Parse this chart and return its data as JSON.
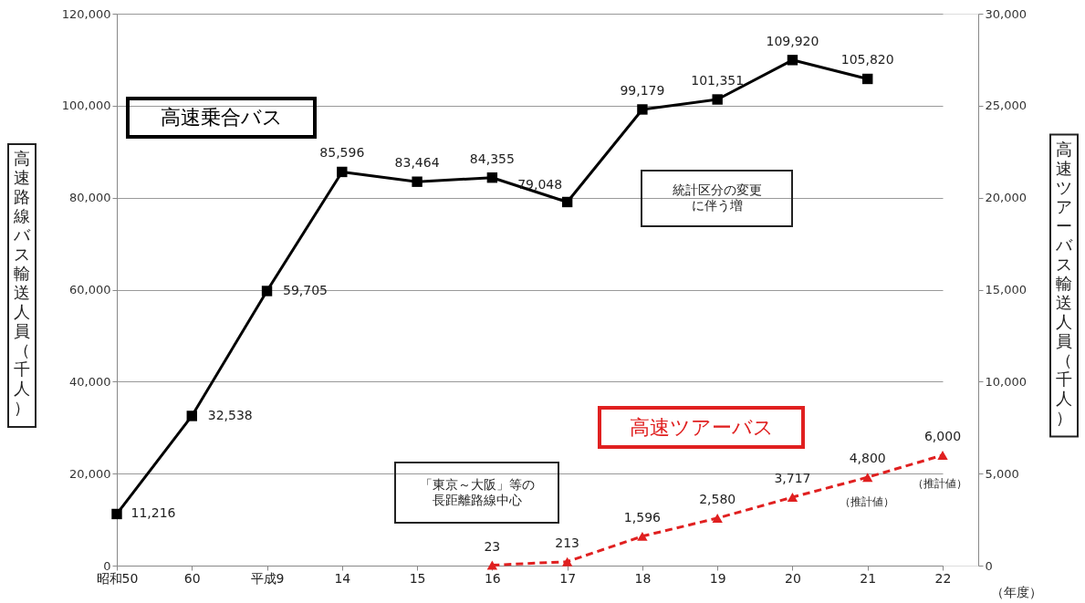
{
  "chart_data": {
    "type": "line",
    "categories": [
      "昭和50",
      "60",
      "平成9",
      "14",
      "15",
      "16",
      "17",
      "18",
      "19",
      "20",
      "21",
      "22"
    ],
    "series": [
      {
        "name": "高速乗合バス",
        "color": "#000000",
        "marker": "square",
        "line_style": "solid",
        "values": [
          11216,
          32538,
          59705,
          85596,
          83464,
          84355,
          79048,
          99179,
          101351,
          109920,
          105820,
          null
        ],
        "value_labels": [
          "11,216",
          "32,538",
          "59,705",
          "85,596",
          "83,464",
          "84,355",
          "79,048",
          "99,179",
          "101,351",
          "109,920",
          "105,820",
          null
        ]
      },
      {
        "name": "高速ツアーバス",
        "color": "#e02020",
        "marker": "triangle",
        "line_style": "dashed",
        "axis": "y2",
        "values": [
          null,
          null,
          null,
          null,
          null,
          23,
          213,
          1596,
          2580,
          3717,
          4800,
          6000
        ],
        "value_labels": [
          null,
          null,
          null,
          null,
          null,
          "23",
          "213",
          "1,596",
          "2,580",
          "3,717",
          "4,800",
          "6,000"
        ]
      }
    ],
    "ylabel": "高速路線バス輸送人員（千人）",
    "y2label": "高速ツアーバス輸送人員（千人）",
    "xlabel": "（年度）",
    "ylim": [
      0,
      120000
    ],
    "yticks": [
      0,
      {
        "value": 20000,
        "label": "20,000"
      },
      {
        "value": 40000,
        "label": "40,000"
      },
      {
        "value": 60000,
        "label": "60,000"
      },
      {
        "value": 80000,
        "label": "80,000"
      },
      {
        "value": 100000,
        "label": "100,000"
      },
      {
        "value": 120000,
        "label": "120,000"
      }
    ],
    "y2lim": [
      0,
      30000
    ],
    "y2ticks": [
      0,
      {
        "value": 5000,
        "label": "5,000"
      },
      {
        "value": 10000,
        "label": "10,000"
      },
      {
        "value": 15000,
        "label": "15,000"
      },
      {
        "value": 20000,
        "label": "20,000"
      },
      {
        "value": 25000,
        "label": "25,000"
      },
      {
        "value": 30000,
        "label": "30,000"
      }
    ],
    "grid": "y",
    "legend": false,
    "annotations": [
      "統計区分の変更に伴う増",
      "「東京～大阪」等の長距離路線中心",
      "（推計値）",
      "（推計値）"
    ]
  }
}
